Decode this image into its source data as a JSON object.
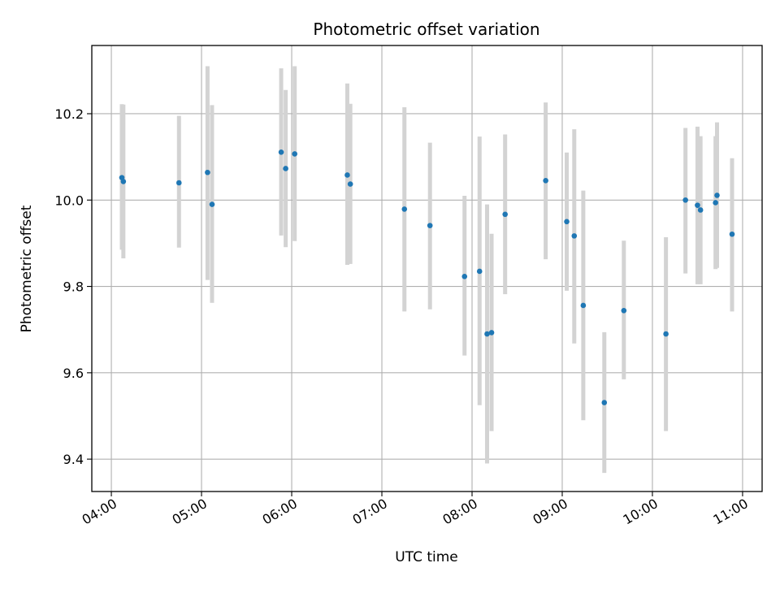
{
  "chart_data": {
    "type": "scatter",
    "title": "Photometric offset variation",
    "xlabel": "UTC time",
    "ylabel": "Photometric offset",
    "xlim": [
      "03:47",
      "11:13"
    ],
    "ylim": [
      9.325,
      10.358
    ],
    "x_ticks": [
      "04:00",
      "05:00",
      "06:00",
      "07:00",
      "08:00",
      "09:00",
      "10:00",
      "11:00"
    ],
    "y_ticks": [
      "9.4",
      "9.6",
      "9.8",
      "10.0",
      "10.2"
    ],
    "grid": true,
    "legend": "none",
    "colors": {
      "points": "#1f77b4",
      "error_bars": "#d3d3d3",
      "grid": "#b0b0b0"
    },
    "points": [
      {
        "x": "04:07",
        "y": 10.052,
        "yerr_low": 9.885,
        "yerr_high": 10.222
      },
      {
        "x": "04:08",
        "y": 10.043,
        "yerr_low": 9.865,
        "yerr_high": 10.221
      },
      {
        "x": "04:45",
        "y": 10.04,
        "yerr_low": 9.89,
        "yerr_high": 10.195
      },
      {
        "x": "05:04",
        "y": 10.064,
        "yerr_low": 9.815,
        "yerr_high": 10.31
      },
      {
        "x": "05:07",
        "y": 9.99,
        "yerr_low": 9.762,
        "yerr_high": 10.22
      },
      {
        "x": "05:53",
        "y": 10.111,
        "yerr_low": 9.918,
        "yerr_high": 10.305
      },
      {
        "x": "05:56",
        "y": 10.073,
        "yerr_low": 9.891,
        "yerr_high": 10.255
      },
      {
        "x": "06:02",
        "y": 10.107,
        "yerr_low": 9.905,
        "yerr_high": 10.31
      },
      {
        "x": "06:37",
        "y": 10.058,
        "yerr_low": 9.85,
        "yerr_high": 10.27
      },
      {
        "x": "06:39",
        "y": 10.037,
        "yerr_low": 9.852,
        "yerr_high": 10.223
      },
      {
        "x": "07:15",
        "y": 9.979,
        "yerr_low": 9.742,
        "yerr_high": 10.215
      },
      {
        "x": "07:32",
        "y": 9.941,
        "yerr_low": 9.747,
        "yerr_high": 10.133
      },
      {
        "x": "07:55",
        "y": 9.823,
        "yerr_low": 9.64,
        "yerr_high": 10.01
      },
      {
        "x": "08:05",
        "y": 9.835,
        "yerr_low": 9.525,
        "yerr_high": 10.147
      },
      {
        "x": "08:10",
        "y": 9.69,
        "yerr_low": 9.39,
        "yerr_high": 9.99
      },
      {
        "x": "08:13",
        "y": 9.693,
        "yerr_low": 9.465,
        "yerr_high": 9.922
      },
      {
        "x": "08:22",
        "y": 9.967,
        "yerr_low": 9.782,
        "yerr_high": 10.152
      },
      {
        "x": "08:49",
        "y": 10.045,
        "yerr_low": 9.863,
        "yerr_high": 10.226
      },
      {
        "x": "09:03",
        "y": 9.95,
        "yerr_low": 9.79,
        "yerr_high": 10.11
      },
      {
        "x": "09:08",
        "y": 9.917,
        "yerr_low": 9.668,
        "yerr_high": 10.164
      },
      {
        "x": "09:14",
        "y": 9.756,
        "yerr_low": 9.49,
        "yerr_high": 10.022
      },
      {
        "x": "09:28",
        "y": 9.531,
        "yerr_low": 9.368,
        "yerr_high": 9.694
      },
      {
        "x": "09:41",
        "y": 9.744,
        "yerr_low": 9.585,
        "yerr_high": 9.906
      },
      {
        "x": "10:09",
        "y": 9.69,
        "yerr_low": 9.465,
        "yerr_high": 9.914
      },
      {
        "x": "10:22",
        "y": 10.0,
        "yerr_low": 9.83,
        "yerr_high": 10.167
      },
      {
        "x": "10:30",
        "y": 9.988,
        "yerr_low": 9.805,
        "yerr_high": 10.17
      },
      {
        "x": "10:32",
        "y": 9.977,
        "yerr_low": 9.805,
        "yerr_high": 10.148
      },
      {
        "x": "10:42",
        "y": 9.994,
        "yerr_low": 9.84,
        "yerr_high": 10.148
      },
      {
        "x": "10:43",
        "y": 10.011,
        "yerr_low": 9.843,
        "yerr_high": 10.18
      },
      {
        "x": "10:53",
        "y": 9.921,
        "yerr_low": 9.742,
        "yerr_high": 10.097
      }
    ]
  }
}
